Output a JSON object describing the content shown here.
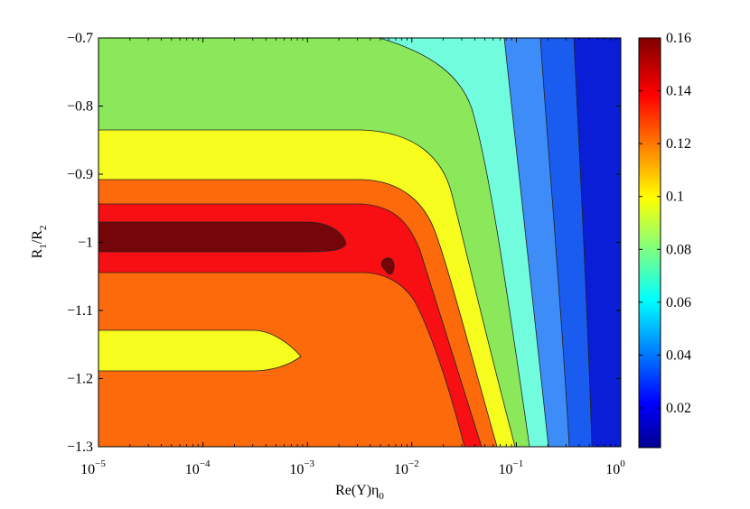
{
  "chart_data": {
    "type": "contour",
    "xlabel_main": "Re(Y)η",
    "xlabel_sub": "0",
    "ylabel_main": "R",
    "ylabel_sub1": "1",
    "ylabel_mid": "/R",
    "ylabel_sub2": "2",
    "x_scale": "log",
    "xlim": [
      1e-05,
      1
    ],
    "ylim": [
      -1.3,
      -0.7
    ],
    "x_ticks": [
      {
        "value": 1e-05,
        "base": "10",
        "exp": "−5"
      },
      {
        "value": 0.0001,
        "base": "10",
        "exp": "−4"
      },
      {
        "value": 0.001,
        "base": "10",
        "exp": "−3"
      },
      {
        "value": 0.01,
        "base": "10",
        "exp": "−2"
      },
      {
        "value": 0.1,
        "base": "10",
        "exp": "−1"
      },
      {
        "value": 1,
        "base": "10",
        "exp": "0"
      }
    ],
    "y_ticks": [
      {
        "value": -0.7,
        "label": "−0.7"
      },
      {
        "value": -0.8,
        "label": "−0.8"
      },
      {
        "value": -0.9,
        "label": "−0.9"
      },
      {
        "value": -1.0,
        "label": "−1"
      },
      {
        "value": -1.1,
        "label": "−1.1"
      },
      {
        "value": -1.2,
        "label": "−1.2"
      },
      {
        "value": -1.3,
        "label": "−1.3"
      }
    ],
    "colorbar": {
      "range": [
        0.005,
        0.16
      ],
      "ticks": [
        {
          "value": 0.02,
          "label": "0.02"
        },
        {
          "value": 0.04,
          "label": "0.04"
        },
        {
          "value": 0.06,
          "label": "0.06"
        },
        {
          "value": 0.08,
          "label": "0.08"
        },
        {
          "value": 0.1,
          "label": "0.1"
        },
        {
          "value": 0.12,
          "label": "0.12"
        },
        {
          "value": 0.14,
          "label": "0.14"
        },
        {
          "value": 0.16,
          "label": "0.16"
        }
      ],
      "colormap": "jet"
    },
    "contour_levels": [
      {
        "name": "band-dark-blue",
        "value": 0.01,
        "color": "#0a1ed8"
      },
      {
        "name": "band-mid-blue",
        "value": 0.03,
        "color": "#1a5cf0"
      },
      {
        "name": "band-light-blue",
        "value": 0.045,
        "color": "#3d8cf7"
      },
      {
        "name": "band-cyan",
        "value": 0.06,
        "color": "#72fcde"
      },
      {
        "name": "band-green",
        "value": 0.085,
        "color": "#8ae85a"
      },
      {
        "name": "band-yellow",
        "value": 0.1,
        "color": "#f7fc1f"
      },
      {
        "name": "band-orange",
        "value": 0.125,
        "color": "#fd6a0c"
      },
      {
        "name": "band-red",
        "value": 0.14,
        "color": "#f80f14"
      },
      {
        "name": "band-dark-red",
        "value": 0.155,
        "color": "#740508"
      }
    ],
    "grid": false
  }
}
